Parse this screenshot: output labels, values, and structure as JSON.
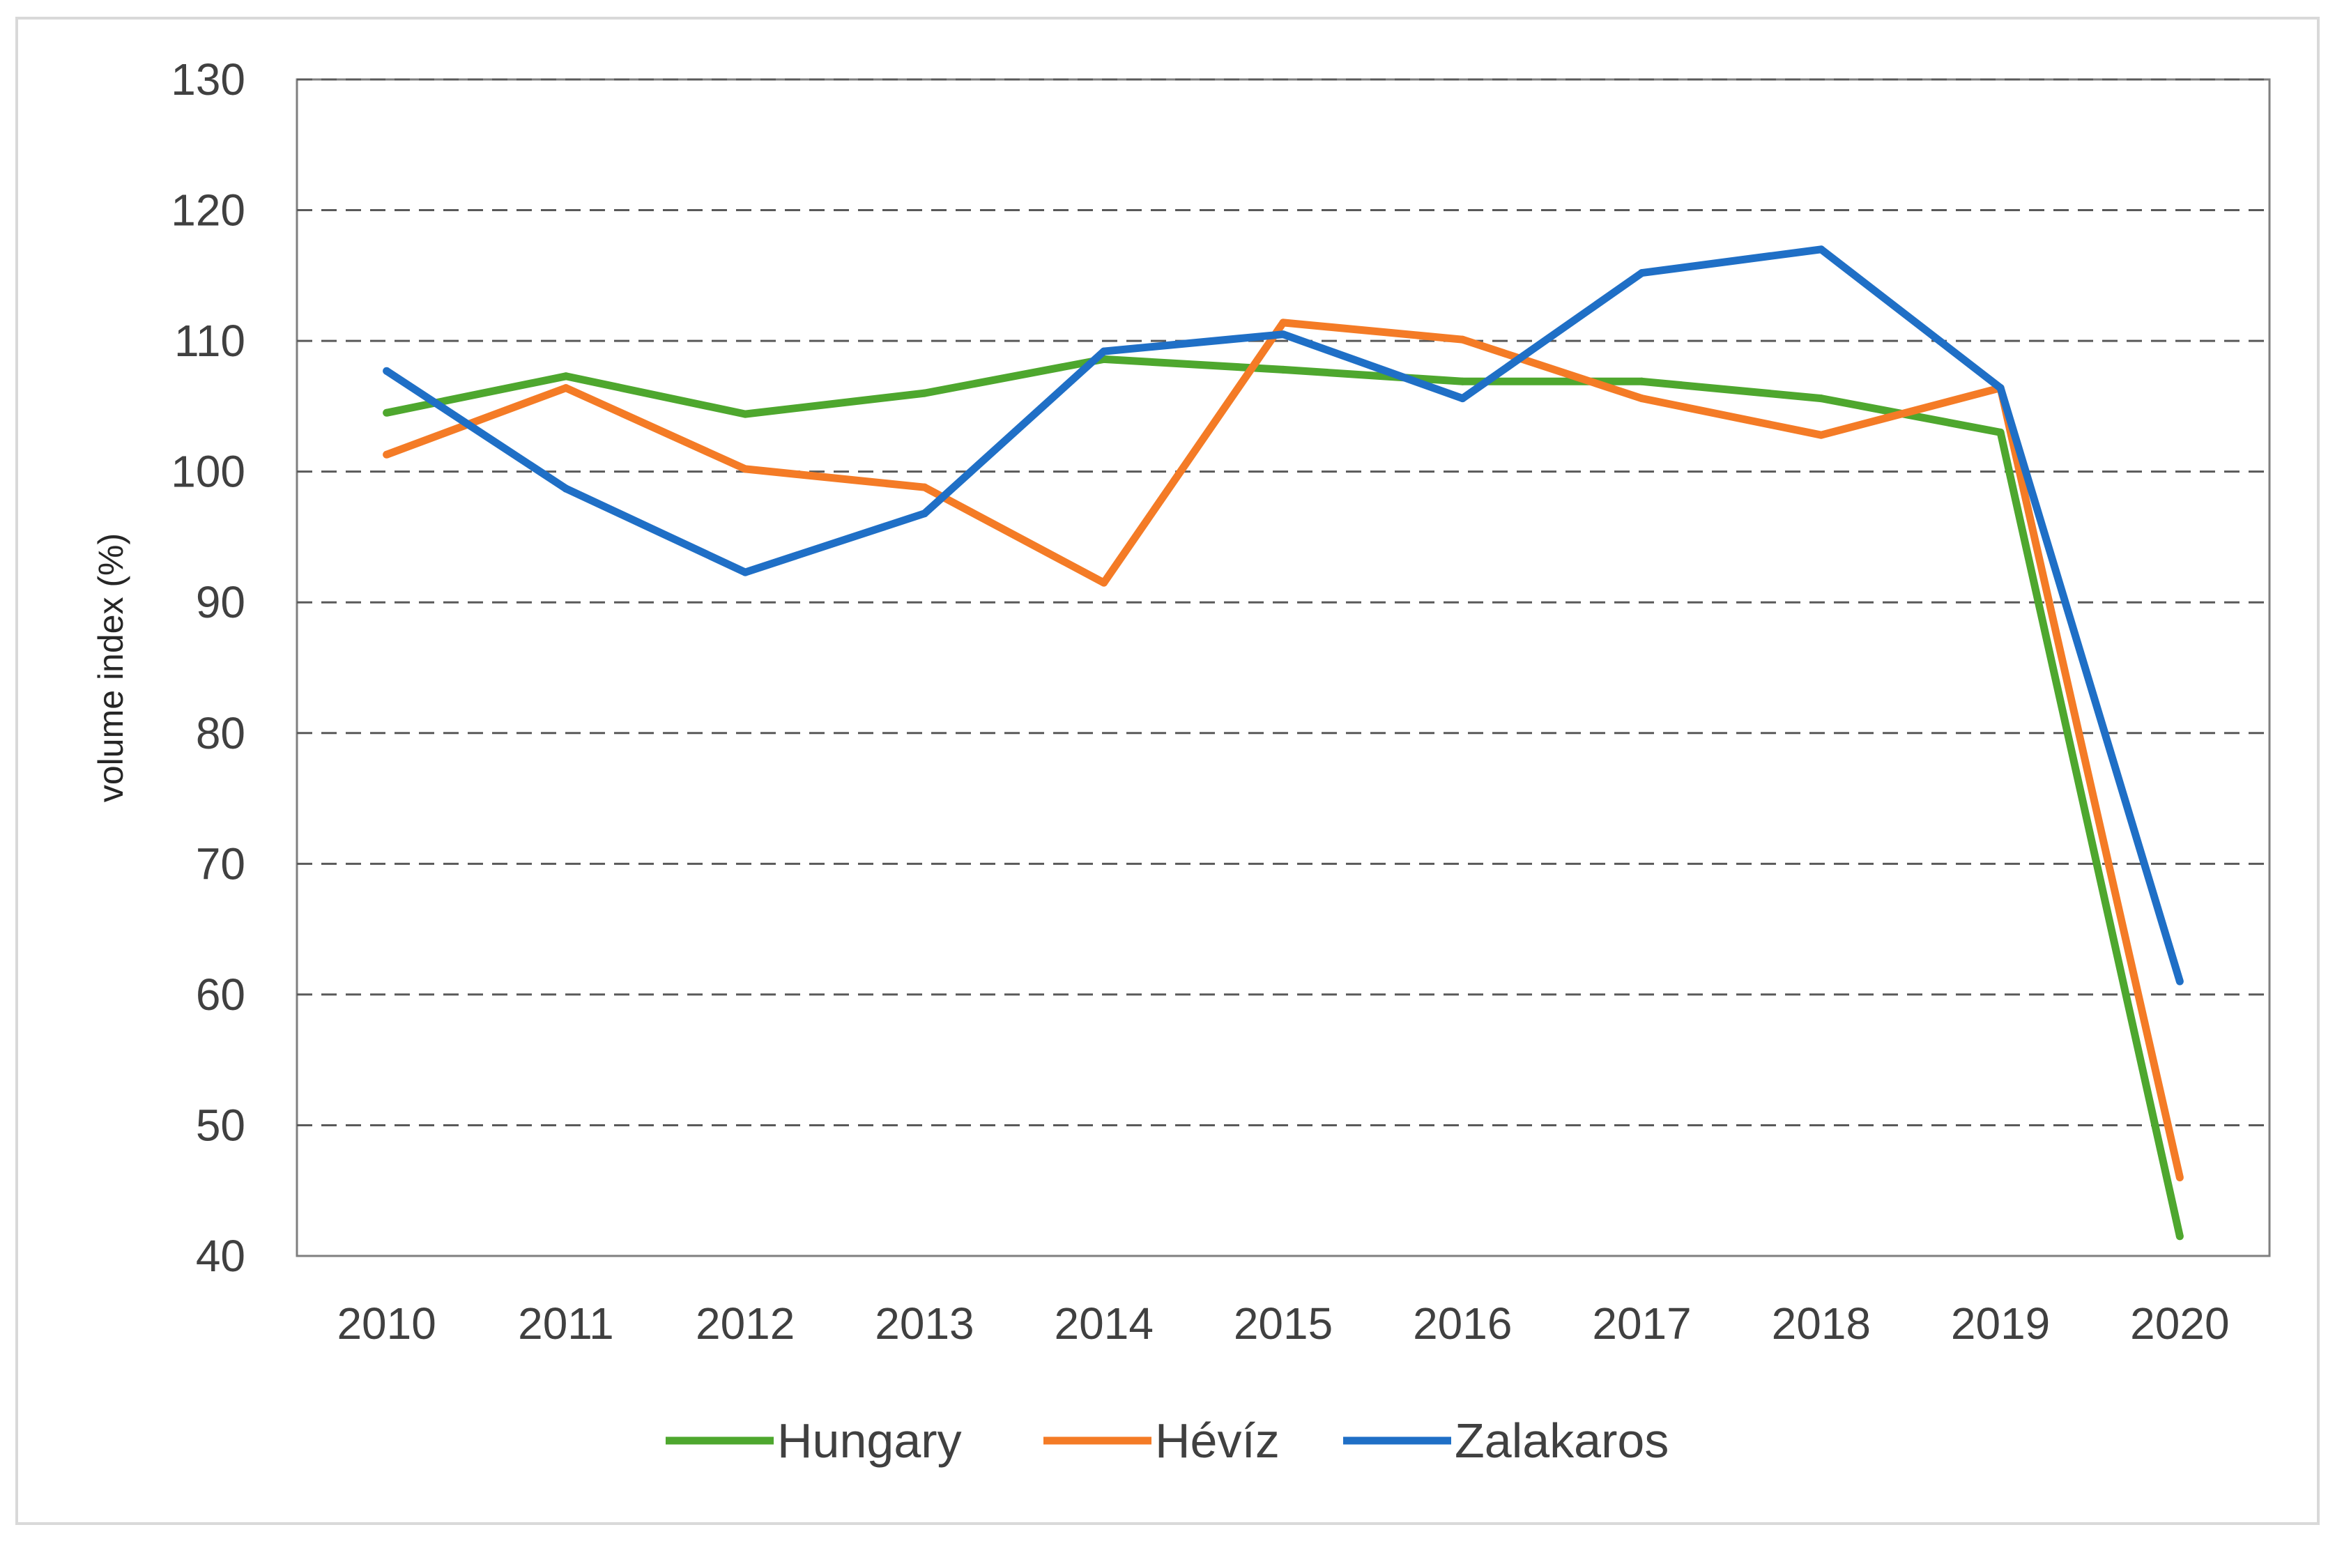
{
  "chart_data": {
    "type": "line",
    "title": "",
    "xlabel": "",
    "ylabel": "volume index (%)",
    "ylim": [
      40,
      130
    ],
    "yticks": [
      40,
      50,
      60,
      70,
      80,
      90,
      100,
      110,
      120,
      130
    ],
    "ytick_labels": [
      "40",
      "50",
      "60",
      "70",
      "80",
      "90",
      "100",
      "110",
      "120",
      "130"
    ],
    "categories": [
      "2010",
      "2011",
      "2012",
      "2013",
      "2014",
      "2015",
      "2016",
      "2017",
      "2018",
      "2019",
      "2020"
    ],
    "grid": "horizontal dashed",
    "legend_position": "bottom",
    "series": [
      {
        "name": "Hungary",
        "color": "#4EA72E",
        "values": [
          104.5,
          107.3,
          104.4,
          106.0,
          108.6,
          107.8,
          106.9,
          106.9,
          105.6,
          103.0,
          41.5
        ]
      },
      {
        "name": "Hévíz",
        "color": "#F47B26",
        "values": [
          101.3,
          106.4,
          100.2,
          98.8,
          91.5,
          111.4,
          110.1,
          105.6,
          102.8,
          106.4,
          46.0
        ]
      },
      {
        "name": "Zalakaros",
        "color": "#1F6FC6",
        "values": [
          107.7,
          98.7,
          92.3,
          96.8,
          109.2,
          110.5,
          105.6,
          115.2,
          117.0,
          106.4,
          61.0
        ]
      }
    ]
  }
}
